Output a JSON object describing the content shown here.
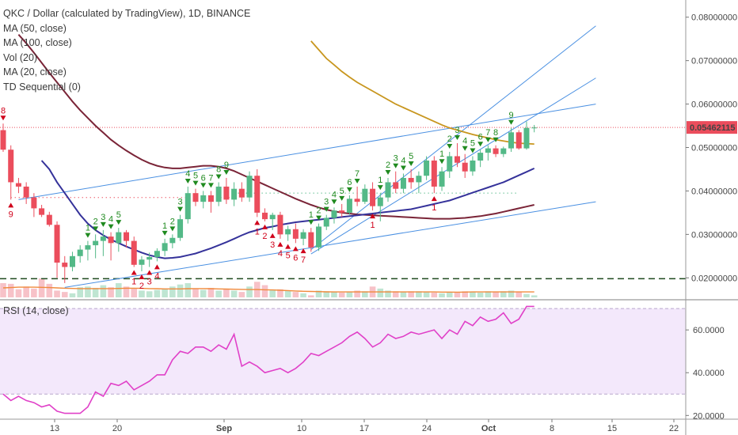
{
  "legend": {
    "title": "QKC / Dollar (calculated by TradingView), 1D, BINANCE",
    "indicators": [
      "MA (50, close)",
      "MA (100, close)",
      "Vol (20)",
      "MA (20, close)",
      "TD Sequential (0)"
    ]
  },
  "rsi_legend": "RSI (14, close)",
  "price_label": "0.05462115",
  "colors": {
    "up": "#53b987",
    "down": "#eb4d5c",
    "ma50": "#c8961e",
    "ma100": "#7a2437",
    "ma20": "#35329a",
    "trend": "#4a90e2",
    "rsi": "#e040c8",
    "td_green": "#1f8a1f",
    "td_red": "#d0021b",
    "price_line": "#eb4d5c"
  },
  "chart_data": {
    "type": "candlestick",
    "title": "QKC / Dollar (calculated by TradingView), 1D, BINANCE",
    "price_axis": {
      "ticks": [
        "0.08000000",
        "0.07000000",
        "0.06000000",
        "0.05000000",
        "0.04000000",
        "0.03000000",
        "0.02000000"
      ],
      "range": [
        0.0155,
        0.0825
      ]
    },
    "rsi_axis": {
      "ticks": [
        "60.0000",
        "40.0000",
        "20.0000"
      ],
      "range": [
        19,
        73
      ],
      "band": [
        30,
        70
      ]
    },
    "date_labels": [
      "13",
      "20",
      "Sep",
      "10",
      "17",
      "24",
      "Oct",
      "8",
      "15",
      "22"
    ],
    "current_price": 0.05462,
    "support_level": 0.0198,
    "candles": [
      {
        "o": 0.054,
        "h": 0.0555,
        "l": 0.049,
        "c": 0.0495
      },
      {
        "o": 0.0495,
        "h": 0.0505,
        "l": 0.038,
        "c": 0.042
      },
      {
        "o": 0.0418,
        "h": 0.043,
        "l": 0.0395,
        "c": 0.041
      },
      {
        "o": 0.041,
        "h": 0.042,
        "l": 0.037,
        "c": 0.0385
      },
      {
        "o": 0.0385,
        "h": 0.0395,
        "l": 0.034,
        "c": 0.036
      },
      {
        "o": 0.036,
        "h": 0.0368,
        "l": 0.034,
        "c": 0.0345
      },
      {
        "o": 0.0345,
        "h": 0.0352,
        "l": 0.0318,
        "c": 0.0322
      },
      {
        "o": 0.0322,
        "h": 0.033,
        "l": 0.02,
        "c": 0.0235
      },
      {
        "o": 0.0235,
        "h": 0.025,
        "l": 0.0188,
        "c": 0.0225
      },
      {
        "o": 0.0225,
        "h": 0.026,
        "l": 0.0215,
        "c": 0.025
      },
      {
        "o": 0.025,
        "h": 0.0275,
        "l": 0.0235,
        "c": 0.0265
      },
      {
        "o": 0.0265,
        "h": 0.0285,
        "l": 0.024,
        "c": 0.0275
      },
      {
        "o": 0.0275,
        "h": 0.03,
        "l": 0.0245,
        "c": 0.0285
      },
      {
        "o": 0.0285,
        "h": 0.031,
        "l": 0.025,
        "c": 0.0295
      },
      {
        "o": 0.0295,
        "h": 0.0305,
        "l": 0.024,
        "c": 0.028
      },
      {
        "o": 0.028,
        "h": 0.0315,
        "l": 0.026,
        "c": 0.0305
      },
      {
        "o": 0.0305,
        "h": 0.031,
        "l": 0.027,
        "c": 0.0285
      },
      {
        "o": 0.0285,
        "h": 0.0295,
        "l": 0.0225,
        "c": 0.023
      },
      {
        "o": 0.023,
        "h": 0.025,
        "l": 0.0215,
        "c": 0.0242
      },
      {
        "o": 0.0242,
        "h": 0.0258,
        "l": 0.0225,
        "c": 0.0248
      },
      {
        "o": 0.0248,
        "h": 0.0268,
        "l": 0.0238,
        "c": 0.0262
      },
      {
        "o": 0.0262,
        "h": 0.029,
        "l": 0.025,
        "c": 0.028
      },
      {
        "o": 0.028,
        "h": 0.03,
        "l": 0.0268,
        "c": 0.0292
      },
      {
        "o": 0.0292,
        "h": 0.0345,
        "l": 0.0285,
        "c": 0.0335
      },
      {
        "o": 0.0335,
        "h": 0.041,
        "l": 0.0325,
        "c": 0.0395
      },
      {
        "o": 0.0395,
        "h": 0.0405,
        "l": 0.0365,
        "c": 0.0375
      },
      {
        "o": 0.0375,
        "h": 0.04,
        "l": 0.036,
        "c": 0.039
      },
      {
        "o": 0.039,
        "h": 0.04,
        "l": 0.035,
        "c": 0.0375
      },
      {
        "o": 0.0375,
        "h": 0.042,
        "l": 0.0365,
        "c": 0.041
      },
      {
        "o": 0.041,
        "h": 0.043,
        "l": 0.037,
        "c": 0.038
      },
      {
        "o": 0.038,
        "h": 0.042,
        "l": 0.0365,
        "c": 0.0405
      },
      {
        "o": 0.0405,
        "h": 0.042,
        "l": 0.0375,
        "c": 0.0385
      },
      {
        "o": 0.0385,
        "h": 0.0445,
        "l": 0.0375,
        "c": 0.0435
      },
      {
        "o": 0.0435,
        "h": 0.045,
        "l": 0.034,
        "c": 0.035
      },
      {
        "o": 0.035,
        "h": 0.036,
        "l": 0.033,
        "c": 0.0335
      },
      {
        "o": 0.0335,
        "h": 0.035,
        "l": 0.031,
        "c": 0.0345
      },
      {
        "o": 0.0345,
        "h": 0.0352,
        "l": 0.029,
        "c": 0.03
      },
      {
        "o": 0.03,
        "h": 0.032,
        "l": 0.0285,
        "c": 0.0312
      },
      {
        "o": 0.0312,
        "h": 0.0325,
        "l": 0.028,
        "c": 0.029
      },
      {
        "o": 0.029,
        "h": 0.0312,
        "l": 0.0275,
        "c": 0.0305
      },
      {
        "o": 0.0305,
        "h": 0.0315,
        "l": 0.026,
        "c": 0.027
      },
      {
        "o": 0.027,
        "h": 0.0325,
        "l": 0.0262,
        "c": 0.0318
      },
      {
        "o": 0.0318,
        "h": 0.0345,
        "l": 0.031,
        "c": 0.0338
      },
      {
        "o": 0.0338,
        "h": 0.0362,
        "l": 0.0325,
        "c": 0.0355
      },
      {
        "o": 0.0355,
        "h": 0.037,
        "l": 0.034,
        "c": 0.035
      },
      {
        "o": 0.035,
        "h": 0.039,
        "l": 0.0345,
        "c": 0.0382
      },
      {
        "o": 0.0382,
        "h": 0.041,
        "l": 0.0365,
        "c": 0.0375
      },
      {
        "o": 0.0375,
        "h": 0.0415,
        "l": 0.037,
        "c": 0.0405
      },
      {
        "o": 0.0405,
        "h": 0.042,
        "l": 0.0355,
        "c": 0.0365
      },
      {
        "o": 0.0365,
        "h": 0.0395,
        "l": 0.033,
        "c": 0.0385
      },
      {
        "o": 0.0385,
        "h": 0.043,
        "l": 0.0375,
        "c": 0.042
      },
      {
        "o": 0.042,
        "h": 0.0445,
        "l": 0.0395,
        "c": 0.0405
      },
      {
        "o": 0.0405,
        "h": 0.044,
        "l": 0.0395,
        "c": 0.043
      },
      {
        "o": 0.043,
        "h": 0.045,
        "l": 0.0405,
        "c": 0.042
      },
      {
        "o": 0.042,
        "h": 0.0445,
        "l": 0.0395,
        "c": 0.0435
      },
      {
        "o": 0.0435,
        "h": 0.048,
        "l": 0.0425,
        "c": 0.047
      },
      {
        "o": 0.047,
        "h": 0.048,
        "l": 0.0395,
        "c": 0.041
      },
      {
        "o": 0.041,
        "h": 0.0455,
        "l": 0.04,
        "c": 0.0445
      },
      {
        "o": 0.0445,
        "h": 0.049,
        "l": 0.043,
        "c": 0.048
      },
      {
        "o": 0.048,
        "h": 0.051,
        "l": 0.0455,
        "c": 0.0465
      },
      {
        "o": 0.0465,
        "h": 0.0485,
        "l": 0.043,
        "c": 0.0445
      },
      {
        "o": 0.0445,
        "h": 0.048,
        "l": 0.0435,
        "c": 0.047
      },
      {
        "o": 0.047,
        "h": 0.0495,
        "l": 0.0455,
        "c": 0.0488
      },
      {
        "o": 0.0488,
        "h": 0.0505,
        "l": 0.047,
        "c": 0.0498
      },
      {
        "o": 0.0498,
        "h": 0.0505,
        "l": 0.0478,
        "c": 0.0485
      },
      {
        "o": 0.0485,
        "h": 0.0502,
        "l": 0.0478,
        "c": 0.0498
      },
      {
        "o": 0.0498,
        "h": 0.0545,
        "l": 0.049,
        "c": 0.0535
      },
      {
        "o": 0.0535,
        "h": 0.054,
        "l": 0.0495,
        "c": 0.0498
      },
      {
        "o": 0.0498,
        "h": 0.056,
        "l": 0.0495,
        "c": 0.0545
      },
      {
        "o": 0.0545,
        "h": 0.0552,
        "l": 0.0535,
        "c": 0.0546
      }
    ],
    "volume": [
      2.1,
      2.0,
      1.2,
      1.6,
      1.3,
      2.8,
      2.0,
      1.0,
      0.8,
      0.6,
      1.5,
      1.6,
      1.4,
      1.8,
      1.5,
      2.1,
      1.6,
      1.3,
      1.0,
      0.9,
      1.1,
      1.3,
      1.6,
      1.9,
      2.1,
      1.3,
      1.1,
      1.4,
      1.0,
      1.2,
      1.0,
      0.8,
      1.6,
      2.3,
      1.8,
      1.1,
      1.2,
      1.0,
      0.8,
      0.6,
      0.3,
      1.0,
      0.9,
      0.8,
      0.7,
      0.8,
      1.0,
      0.9,
      1.6,
      1.3,
      1.0,
      0.9,
      0.8,
      0.9,
      0.9,
      0.8,
      0.7,
      0.6,
      0.8,
      0.7,
      0.9,
      0.8,
      0.7,
      0.9,
      0.8,
      0.9,
      1.0,
      0.8,
      0.5,
      0.3
    ],
    "ma20": [
      null,
      null,
      null,
      null,
      null,
      0.047,
      0.045,
      0.042,
      0.0395,
      0.037,
      0.0345,
      0.0325,
      0.031,
      0.0298,
      0.0288,
      0.028,
      0.0272,
      0.0265,
      0.0258,
      0.0252,
      0.0248,
      0.0245,
      0.0246,
      0.0248,
      0.0252,
      0.0256,
      0.0262,
      0.0268,
      0.0275,
      0.0282,
      0.029,
      0.0298,
      0.0305,
      0.031,
      0.0315,
      0.0318,
      0.0322,
      0.0325,
      0.0328,
      0.033,
      0.0332,
      0.0334,
      0.0336,
      0.0338,
      0.034,
      0.0342,
      0.0344,
      0.0346,
      0.0348,
      0.035,
      0.0352,
      0.0354,
      0.0356,
      0.0358,
      0.0362,
      0.0366,
      0.037,
      0.0374,
      0.0378,
      0.0384,
      0.039,
      0.0396,
      0.0402,
      0.0408,
      0.0414,
      0.042,
      0.0428,
      0.0436,
      0.0444,
      0.0452
    ],
    "ma100": [
      null,
      null,
      0.076,
      0.074,
      0.0718,
      0.0695,
      0.0672,
      0.065,
      0.0628,
      0.0606,
      0.0586,
      0.0568,
      0.055,
      0.0534,
      0.0518,
      0.0505,
      0.0493,
      0.0482,
      0.0472,
      0.0464,
      0.0458,
      0.0454,
      0.0452,
      0.0452,
      0.0454,
      0.0456,
      0.0458,
      0.0458,
      0.0456,
      0.0452,
      0.0446,
      0.0438,
      0.043,
      0.0422,
      0.0414,
      0.0406,
      0.0398,
      0.039,
      0.0382,
      0.0375,
      0.0368,
      0.0362,
      0.0357,
      0.0353,
      0.035,
      0.0348,
      0.0346,
      0.0345,
      0.0344,
      0.0343,
      0.0342,
      0.0341,
      0.034,
      0.0339,
      0.0338,
      0.0337,
      0.0336,
      0.0336,
      0.0336,
      0.0337,
      0.0338,
      0.034,
      0.0342,
      0.0345,
      0.0348,
      0.0352,
      0.0356,
      0.036,
      0.0364,
      0.0368
    ],
    "ma50": [
      null,
      null,
      null,
      null,
      null,
      null,
      null,
      null,
      null,
      null,
      null,
      null,
      null,
      null,
      null,
      null,
      null,
      null,
      null,
      null,
      null,
      null,
      null,
      null,
      null,
      null,
      null,
      null,
      null,
      null,
      null,
      null,
      null,
      null,
      null,
      null,
      null,
      null,
      null,
      null,
      0.0745,
      0.0725,
      0.0705,
      0.069,
      0.0675,
      0.0662,
      0.065,
      0.064,
      0.063,
      0.062,
      0.061,
      0.06,
      0.0592,
      0.0584,
      0.0576,
      0.0568,
      0.056,
      0.0552,
      0.0545,
      0.054,
      0.0535,
      0.053,
      0.0526,
      0.0522,
      0.0518,
      0.0515,
      0.0512,
      0.051,
      0.0509,
      0.0508
    ],
    "volume_ma": [
      1.4,
      1.45,
      1.5,
      1.5,
      1.5,
      1.48,
      1.45,
      1.4,
      1.35,
      1.32,
      1.3,
      1.3,
      1.3,
      1.3,
      1.3,
      1.32,
      1.35,
      1.35,
      1.33,
      1.3,
      1.28,
      1.25,
      1.25,
      1.25,
      1.28,
      1.3,
      1.3,
      1.28,
      1.25,
      1.22,
      1.2,
      1.18,
      1.15,
      1.15,
      1.12,
      1.1,
      1.05,
      1.0,
      0.95,
      0.9,
      0.88,
      0.85,
      0.82,
      0.8,
      0.8,
      0.8,
      0.8,
      0.8,
      0.8,
      0.8,
      0.8,
      0.8,
      0.8,
      0.8,
      0.8,
      0.8,
      0.8,
      0.78,
      0.78,
      0.77,
      0.78,
      0.8,
      0.8,
      0.8,
      0.8,
      0.8,
      0.8,
      0.8,
      0.8,
      0.8
    ],
    "rsi": [
      30,
      27,
      29,
      27,
      26,
      24,
      25,
      22,
      21,
      21,
      21,
      24,
      31,
      29,
      35,
      34,
      36,
      32,
      34,
      36,
      39,
      39,
      46,
      50,
      49,
      52,
      52,
      50,
      53,
      51,
      58,
      43,
      45,
      43,
      40,
      41,
      42,
      40,
      42,
      45,
      49,
      48,
      50,
      52,
      54,
      57,
      59,
      56,
      52,
      54,
      58,
      56,
      57,
      59,
      58,
      59,
      60,
      56,
      60,
      58,
      64,
      62,
      66,
      64,
      65,
      68,
      63,
      65,
      71,
      71
    ],
    "td_labels": [
      {
        "i": 0,
        "t": "8",
        "c": "red",
        "pos": "above"
      },
      {
        "i": 1,
        "t": "9",
        "c": "red",
        "pos": "below"
      },
      {
        "i": 11,
        "t": "1",
        "c": "green",
        "pos": "above"
      },
      {
        "i": 12,
        "t": "2",
        "c": "green",
        "pos": "above"
      },
      {
        "i": 13,
        "t": "3",
        "c": "green",
        "pos": "above"
      },
      {
        "i": 14,
        "t": "4",
        "c": "green",
        "pos": "above"
      },
      {
        "i": 15,
        "t": "5",
        "c": "green",
        "pos": "above"
      },
      {
        "i": 17,
        "t": "1",
        "c": "red",
        "pos": "below"
      },
      {
        "i": 18,
        "t": "2",
        "c": "red",
        "pos": "below"
      },
      {
        "i": 19,
        "t": "3",
        "c": "red",
        "pos": "below"
      },
      {
        "i": 20,
        "t": "4",
        "c": "red",
        "pos": "below"
      },
      {
        "i": 21,
        "t": "1",
        "c": "green",
        "pos": "above"
      },
      {
        "i": 22,
        "t": "2",
        "c": "green",
        "pos": "above"
      },
      {
        "i": 23,
        "t": "3",
        "c": "green",
        "pos": "above"
      },
      {
        "i": 24,
        "t": "4",
        "c": "green",
        "pos": "above"
      },
      {
        "i": 25,
        "t": "5",
        "c": "green",
        "pos": "above"
      },
      {
        "i": 26,
        "t": "6",
        "c": "green",
        "pos": "above"
      },
      {
        "i": 27,
        "t": "7",
        "c": "green",
        "pos": "above"
      },
      {
        "i": 28,
        "t": "8",
        "c": "green",
        "pos": "above"
      },
      {
        "i": 29,
        "t": "9",
        "c": "green",
        "pos": "above"
      },
      {
        "i": 33,
        "t": "1",
        "c": "red",
        "pos": "below"
      },
      {
        "i": 34,
        "t": "2",
        "c": "red",
        "pos": "below"
      },
      {
        "i": 35,
        "t": "3",
        "c": "red",
        "pos": "below"
      },
      {
        "i": 36,
        "t": "4",
        "c": "red",
        "pos": "below"
      },
      {
        "i": 37,
        "t": "5",
        "c": "red",
        "pos": "below"
      },
      {
        "i": 38,
        "t": "6",
        "c": "red",
        "pos": "below"
      },
      {
        "i": 39,
        "t": "7",
        "c": "red",
        "pos": "below"
      },
      {
        "i": 40,
        "t": "1",
        "c": "green",
        "pos": "above"
      },
      {
        "i": 41,
        "t": "2",
        "c": "green",
        "pos": "above"
      },
      {
        "i": 42,
        "t": "3",
        "c": "green",
        "pos": "above"
      },
      {
        "i": 43,
        "t": "4",
        "c": "green",
        "pos": "above"
      },
      {
        "i": 44,
        "t": "5",
        "c": "green",
        "pos": "above"
      },
      {
        "i": 45,
        "t": "6",
        "c": "green",
        "pos": "above"
      },
      {
        "i": 46,
        "t": "7",
        "c": "green",
        "pos": "above"
      },
      {
        "i": 48,
        "t": "1",
        "c": "red",
        "pos": "below"
      },
      {
        "i": 49,
        "t": "1",
        "c": "green",
        "pos": "above"
      },
      {
        "i": 50,
        "t": "2",
        "c": "green",
        "pos": "above"
      },
      {
        "i": 51,
        "t": "3",
        "c": "green",
        "pos": "above"
      },
      {
        "i": 52,
        "t": "4",
        "c": "green",
        "pos": "above"
      },
      {
        "i": 53,
        "t": "5",
        "c": "green",
        "pos": "above"
      },
      {
        "i": 56,
        "t": "1",
        "c": "red",
        "pos": "below"
      },
      {
        "i": 57,
        "t": "1",
        "c": "green",
        "pos": "above"
      },
      {
        "i": 58,
        "t": "2",
        "c": "green",
        "pos": "above"
      },
      {
        "i": 59,
        "t": "3",
        "c": "green",
        "pos": "above"
      },
      {
        "i": 60,
        "t": "4",
        "c": "green",
        "pos": "above"
      },
      {
        "i": 61,
        "t": "5",
        "c": "green",
        "pos": "above"
      },
      {
        "i": 62,
        "t": "6",
        "c": "green",
        "pos": "above"
      },
      {
        "i": 63,
        "t": "7",
        "c": "green",
        "pos": "above"
      },
      {
        "i": 64,
        "t": "8",
        "c": "green",
        "pos": "above"
      },
      {
        "i": 66,
        "t": "9",
        "c": "green",
        "pos": "above"
      }
    ],
    "trendlines": [
      {
        "name": "upper-channel",
        "from": [
          2,
          0.038
        ],
        "to": [
          77,
          0.06
        ]
      },
      {
        "name": "lower-channel",
        "from": [
          8,
          0.0178
        ],
        "to": [
          77,
          0.0375
        ]
      },
      {
        "name": "steep-upper",
        "from": [
          40,
          0.0265
        ],
        "to": [
          77,
          0.078
        ]
      },
      {
        "name": "steep-mid",
        "from": [
          40,
          0.0255
        ],
        "to": [
          77,
          0.066
        ]
      }
    ],
    "dotted_levels": [
      {
        "from": 1,
        "to": 30,
        "price": 0.0385,
        "color": "down"
      },
      {
        "from": 30,
        "to": 67,
        "price": 0.0395,
        "color": "up"
      }
    ],
    "volume_range": [
      0,
      7
    ]
  }
}
